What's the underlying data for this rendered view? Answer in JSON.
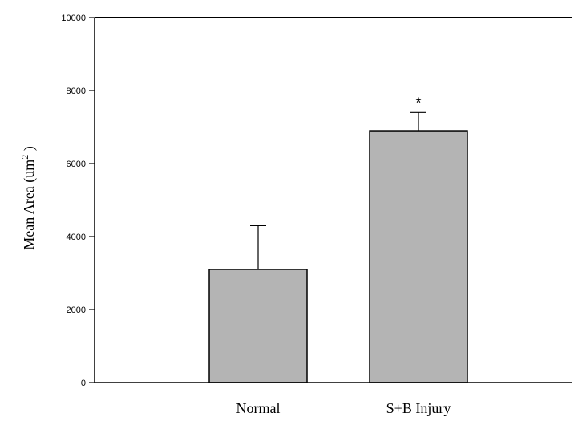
{
  "chart_data": {
    "type": "bar",
    "categories": [
      "Normal",
      "S+B Injury"
    ],
    "values": [
      3100,
      6900
    ],
    "errors": [
      1200,
      500
    ],
    "significance": [
      "",
      "*"
    ],
    "ylabel_prefix": "Mean Area (um",
    "ylabel_sup": "2",
    "ylabel_suffix": " )",
    "ylim": [
      0,
      10000
    ],
    "yticks": [
      0,
      2000,
      4000,
      6000,
      8000,
      10000
    ],
    "bar_color": "#b4b4b4",
    "grid": false
  }
}
